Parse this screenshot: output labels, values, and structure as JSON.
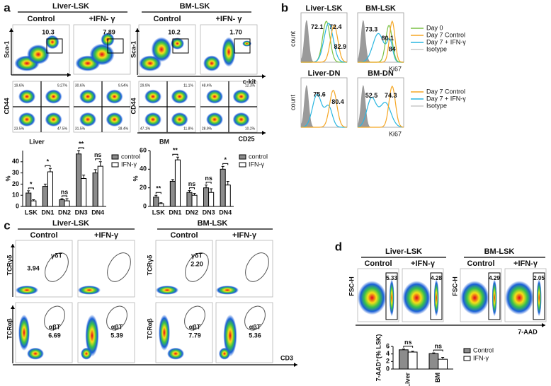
{
  "panel_a": {
    "letter": "a",
    "groups": [
      "Liver-LSK",
      "BM-LSK"
    ],
    "columns": [
      "Control",
      "+IFN- γ",
      "Control",
      "+IFN- γ"
    ],
    "gates": [
      "10.3",
      "7.89",
      "10.2",
      "1.70"
    ],
    "y_label_top": "Sca-1",
    "x_label_top": "c-kit",
    "y_label_bottom": "CD44",
    "x_label_bottom": "CD25",
    "quadrants": [
      [
        "19.6%",
        "9.27%",
        "23.5%",
        "47.5%"
      ],
      [
        "30.6%",
        "9.54%",
        "31.5%",
        "28.4%"
      ],
      [
        "29.9%",
        "11.1%",
        "47.1%",
        "11.8%"
      ],
      [
        "48.4%",
        "12.3%",
        "28.9%",
        "10.2%"
      ]
    ]
  },
  "panel_b": {
    "letter": "b",
    "titles": [
      "Liver-LSK",
      "BM-LSK",
      "Liver-DN",
      "BM-DN"
    ],
    "y_label": "count",
    "x_label": "Ki67",
    "numbers": [
      [
        {
          "text": "72.1",
          "color": "#7ac143"
        },
        {
          "text": "72.4",
          "color": "#29b6e0"
        },
        {
          "text": "82.9",
          "color": "#f5a623"
        }
      ],
      [
        {
          "text": "73.3",
          "color": "#29b6e0"
        },
        {
          "text": "80.1",
          "color": "#7ac143"
        },
        {
          "text": "84",
          "color": "#f5a623"
        }
      ],
      [
        {
          "text": "75.6",
          "color": "#29b6e0"
        },
        {
          "text": "80.4",
          "color": "#f5a623"
        }
      ],
      [
        {
          "text": "52.5",
          "color": "#29b6e0"
        },
        {
          "text": "74.3",
          "color": "#f5a623"
        }
      ]
    ],
    "legend_top": [
      {
        "name": "Day 0",
        "color": "#7ac143"
      },
      {
        "name": "Day 7  Control",
        "color": "#f5a623"
      },
      {
        "name": "Day 7  + IFN-γ",
        "color": "#29b6e0"
      },
      {
        "name": "Isotype",
        "color": "#c8c8c8"
      }
    ],
    "legend_bottom": [
      {
        "name": "Day 7  Control",
        "color": "#f5a623"
      },
      {
        "name": "Day 7  + IFN-γ",
        "color": "#29b6e0"
      },
      {
        "name": "Isotype",
        "color": "#c8c8c8"
      }
    ]
  },
  "panel_c": {
    "letter": "c",
    "groups": [
      "Liver-LSK",
      "BM-LSK"
    ],
    "columns": [
      "Control",
      "+IFN-γ",
      "Control",
      "+IFN-γ"
    ],
    "y_label_top": "TCRγδ",
    "y_label_bottom": "TCRαβ",
    "x_label": "CD3",
    "gd_label": "γδT",
    "ab_label": "αβT",
    "gd_numbers": [
      "3.94",
      "2.20"
    ],
    "ab_numbers": [
      "6.69",
      "5.39",
      "7.79",
      "5.36"
    ]
  },
  "panel_d": {
    "letter": "d",
    "groups": [
      "Liver-LSK",
      "BM-LSK"
    ],
    "columns": [
      "Control",
      "+IFN-γ",
      "Control",
      "+IFN-γ"
    ],
    "y_label": "FSC-H",
    "x_label": "7-AAD",
    "gates": [
      "5.33",
      "4.28",
      "4.29",
      "2.05"
    ]
  },
  "chart_data": [
    {
      "type": "bar",
      "title": "Liver",
      "categories": [
        "LSK",
        "DN1",
        "DN2",
        "DN3",
        "DN4"
      ],
      "ylabel": "%",
      "series": [
        {
          "name": "control",
          "color": "#8c8c8c",
          "values": [
            12,
            18,
            6,
            47,
            30
          ],
          "errors": [
            2,
            2,
            1,
            3,
            3
          ]
        },
        {
          "name": "IFN-γ",
          "color": "#ffffff",
          "values": [
            5,
            31,
            5,
            25,
            36
          ],
          "errors": [
            1,
            3,
            2,
            3,
            4
          ]
        }
      ],
      "significance": [
        "*",
        "*",
        "ns",
        "**",
        "ns"
      ],
      "ylim": [
        0,
        50
      ],
      "yticks": [
        0,
        10,
        20,
        30,
        40
      ]
    },
    {
      "type": "bar",
      "title": "BM",
      "categories": [
        "LSK",
        "DN1",
        "DN2",
        "DN3",
        "DN4"
      ],
      "ylabel": "%",
      "series": [
        {
          "name": "control",
          "color": "#8c8c8c",
          "values": [
            10,
            27,
            15,
            20,
            40
          ],
          "errors": [
            2,
            2,
            2,
            3,
            3
          ]
        },
        {
          "name": "IFN-γ",
          "color": "#ffffff",
          "values": [
            3,
            50,
            12,
            15,
            23
          ],
          "errors": [
            1,
            3,
            2,
            4,
            4
          ]
        }
      ],
      "significance": [
        "**",
        "**",
        "ns",
        "ns",
        "*"
      ],
      "ylim": [
        0,
        60
      ],
      "yticks": [
        0,
        20,
        40,
        60
      ]
    },
    {
      "type": "bar",
      "categories": [
        "Liver",
        "BM"
      ],
      "ylabel": "7-AAD⁺(% LSK)",
      "series": [
        {
          "name": "Control",
          "color": "#8c8c8c",
          "values": [
            5.1,
            4.1
          ],
          "errors": [
            0.2,
            0.2
          ]
        },
        {
          "name": "IFN-γ",
          "color": "#ffffff",
          "values": [
            4.5,
            2.6
          ],
          "errors": [
            0.2,
            0.5
          ]
        }
      ],
      "significance": [
        "ns",
        "ns"
      ],
      "ylim": [
        0,
        6
      ],
      "yticks": [
        0,
        2,
        4,
        6
      ]
    }
  ]
}
